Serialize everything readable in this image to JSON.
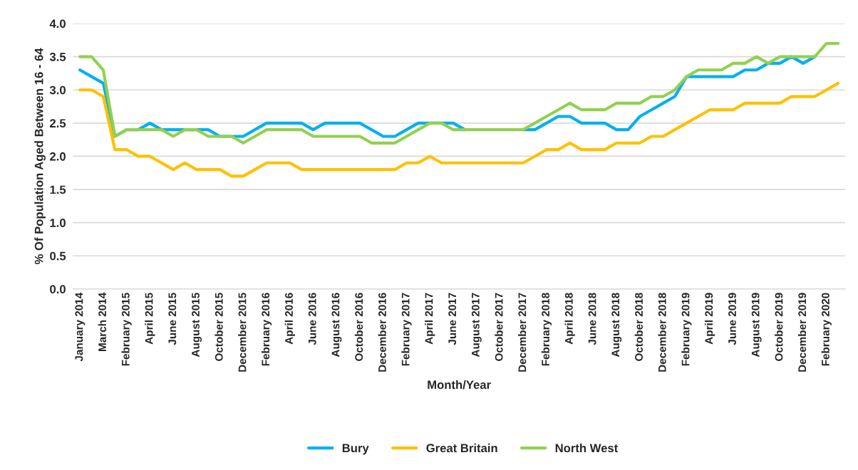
{
  "chart_data": {
    "type": "line",
    "xlabel": "Month/Year",
    "ylabel": "% Of Population Aged Between 16 - 64",
    "categories": [
      "January 2014",
      null,
      "March 2014",
      null,
      "February 2015",
      null,
      "April 2015",
      null,
      "June 2015",
      null,
      "August 2015",
      null,
      "October 2015",
      null,
      "December 2015",
      null,
      "February 2016",
      null,
      "April 2016",
      null,
      "June 2016",
      null,
      "August 2016",
      null,
      "October 2016",
      null,
      "December 2016",
      null,
      "February 2017",
      null,
      "April 2017",
      null,
      "June 2017",
      null,
      "August 2017",
      null,
      "October 2017",
      null,
      "December 2017",
      null,
      "February 2018",
      null,
      "April 2018",
      null,
      "June 2018",
      null,
      "August 2018",
      null,
      "October 2018",
      null,
      "December 2018",
      null,
      "February 2019",
      null,
      "April 2019",
      null,
      "June 2019",
      null,
      "August 2019",
      null,
      "October 2019",
      null,
      "December 2019",
      null,
      "February 2020",
      null
    ],
    "series": [
      {
        "name": "Bury",
        "color": "#00b0f0",
        "values": [
          3.3,
          3.2,
          3.1,
          2.3,
          2.4,
          2.4,
          2.5,
          2.4,
          2.4,
          2.4,
          2.4,
          2.4,
          2.3,
          2.3,
          2.3,
          2.4,
          2.5,
          2.5,
          2.5,
          2.5,
          2.4,
          2.5,
          2.5,
          2.5,
          2.5,
          2.4,
          2.3,
          2.3,
          2.4,
          2.5,
          2.5,
          2.5,
          2.5,
          2.4,
          null,
          null,
          null,
          null,
          2.4,
          2.4,
          2.5,
          2.6,
          2.6,
          2.5,
          2.5,
          2.5,
          2.4,
          2.4,
          2.6,
          2.7,
          2.8,
          2.9,
          3.2,
          3.2,
          3.2,
          3.2,
          3.2,
          3.3,
          3.3,
          3.4,
          3.4,
          3.5,
          3.4,
          3.5,
          null,
          null
        ]
      },
      {
        "name": "Great Britain",
        "color": "#ffc000",
        "values": [
          3.0,
          3.0,
          2.9,
          2.1,
          2.1,
          2.0,
          2.0,
          1.9,
          1.8,
          1.9,
          1.8,
          1.8,
          1.8,
          1.7,
          1.7,
          1.8,
          1.9,
          1.9,
          1.9,
          1.8,
          1.8,
          1.8,
          1.8,
          1.8,
          1.8,
          1.8,
          1.8,
          1.8,
          1.9,
          1.9,
          2.0,
          1.9,
          1.9,
          1.9,
          1.9,
          1.9,
          1.9,
          1.9,
          1.9,
          2.0,
          2.1,
          2.1,
          2.2,
          2.1,
          2.1,
          2.1,
          2.2,
          2.2,
          2.2,
          2.3,
          2.3,
          2.4,
          2.5,
          2.6,
          2.7,
          2.7,
          2.7,
          2.8,
          2.8,
          2.8,
          2.8,
          2.9,
          2.9,
          2.9,
          3.0,
          3.1
        ]
      },
      {
        "name": "North West",
        "color": "#92d050",
        "values": [
          3.5,
          3.5,
          3.3,
          2.3,
          2.4,
          2.4,
          2.4,
          2.4,
          2.3,
          2.4,
          2.4,
          2.3,
          2.3,
          2.3,
          2.2,
          2.3,
          2.4,
          2.4,
          2.4,
          2.4,
          2.3,
          2.3,
          2.3,
          2.3,
          2.3,
          2.2,
          2.2,
          2.2,
          2.3,
          2.4,
          2.5,
          2.5,
          2.4,
          2.4,
          2.4,
          2.4,
          2.4,
          2.4,
          2.4,
          2.5,
          2.6,
          2.7,
          2.8,
          2.7,
          2.7,
          2.7,
          2.8,
          2.8,
          2.8,
          2.9,
          2.9,
          3.0,
          3.2,
          3.3,
          3.3,
          3.3,
          3.4,
          3.4,
          3.5,
          3.4,
          3.5,
          3.5,
          3.5,
          3.5,
          3.7,
          3.7
        ]
      }
    ],
    "ylim": [
      0,
      4
    ],
    "yticks": [
      {
        "value": 0,
        "label": "0.0"
      },
      {
        "value": 0.5,
        "label": "0.5"
      },
      {
        "value": 1,
        "label": "1.0"
      },
      {
        "value": 1.5,
        "label": "1.5"
      },
      {
        "value": 2,
        "label": "2.0"
      },
      {
        "value": 2.5,
        "label": "2.5"
      },
      {
        "value": 3,
        "label": "3.0"
      },
      {
        "value": 3.5,
        "label": "3.5"
      },
      {
        "value": 4,
        "label": "4.0"
      }
    ],
    "grid": "y",
    "legend": "bottom",
    "marker": "none",
    "line_style": "solid"
  }
}
